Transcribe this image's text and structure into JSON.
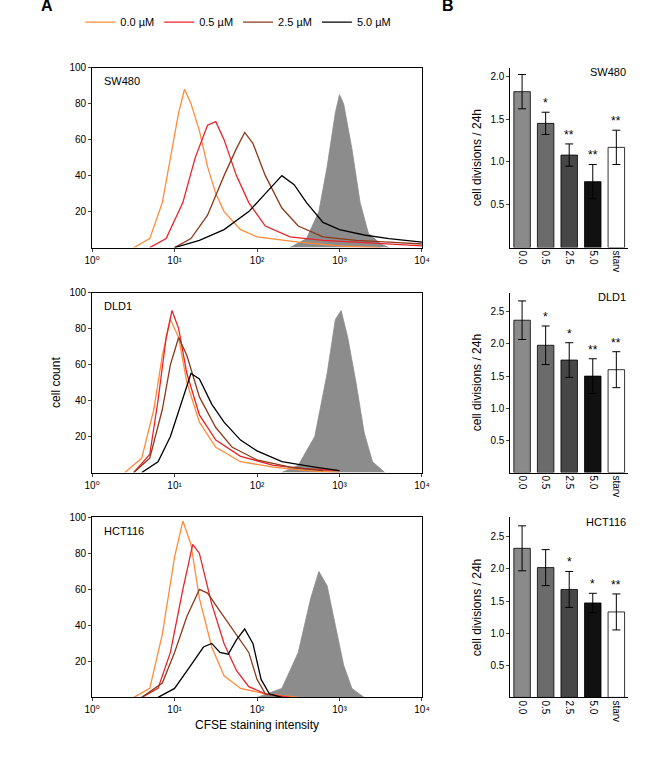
{
  "chart_data": [
    {
      "type": "line",
      "title": "SW480",
      "annotations": [
        "A"
      ],
      "legend": "top left",
      "log": "x",
      "xlim": [
        1,
        10000
      ],
      "xticks": [
        {
          "value": 1,
          "label": "10⁰"
        },
        {
          "value": 10,
          "label": "10¹"
        },
        {
          "value": 100,
          "label": "10²"
        },
        {
          "value": 1000,
          "label": "10³"
        },
        {
          "value": 10000,
          "label": "10⁴"
        }
      ],
      "ylim": [
        0,
        100
      ],
      "yticks": [
        20,
        40,
        60,
        80,
        100
      ],
      "series": [
        {
          "type": "area",
          "color": "#8c8c8c",
          "x": [
            251,
            398,
            562,
            708,
            891,
            1000,
            1122,
            1413,
            1778,
            2239,
            3162,
            3981
          ],
          "values": [
            0,
            5,
            20,
            45,
            75,
            85,
            80,
            55,
            25,
            8,
            2,
            0
          ]
        },
        {
          "name": "0.0 µM",
          "color": "#ff8c3a",
          "x": [
            3.2,
            5,
            7.1,
            8.9,
            11.2,
            13.2,
            15.8,
            20,
            25.1,
            31.6,
            39.8,
            63.1,
            100,
            316,
            1000,
            3162
          ],
          "values": [
            0,
            5,
            25,
            50,
            75,
            88,
            80,
            65,
            45,
            30,
            20,
            10,
            6,
            3,
            1,
            0
          ]
        },
        {
          "name": "0.5 µM",
          "color": "#e8232a",
          "x": [
            5,
            7.9,
            12.6,
            17.8,
            25.1,
            31.6,
            39.8,
            56.2,
            79.4,
            126,
            251,
            631,
            1585,
            3981,
            10000
          ],
          "values": [
            0,
            5,
            25,
            50,
            68,
            70,
            60,
            40,
            25,
            12,
            6,
            4,
            3,
            2,
            1
          ]
        },
        {
          "name": "2.5 µM",
          "color": "#8b3a1a",
          "x": [
            10,
            15.8,
            25.1,
            39.8,
            56.2,
            70.8,
            89.1,
            126,
            200,
            316,
            631,
            1585,
            3981,
            10000
          ],
          "values": [
            0,
            5,
            18,
            40,
            55,
            64,
            58,
            40,
            22,
            12,
            6,
            4,
            3,
            2
          ]
        },
        {
          "name": "5.0 µM",
          "color": "#000000",
          "x": [
            10,
            20,
            39.8,
            79.4,
            126,
            200,
            282,
            398,
            631,
            1000,
            1995,
            3981,
            10000
          ],
          "values": [
            0,
            4,
            10,
            20,
            30,
            40,
            35,
            25,
            14,
            10,
            7,
            5,
            3
          ]
        }
      ]
    },
    {
      "type": "line",
      "title": "DLD1",
      "ylabel": "cell count",
      "log": "x",
      "xlim": [
        1,
        10000
      ],
      "xticks": [
        {
          "value": 1,
          "label": "10⁰"
        },
        {
          "value": 10,
          "label": "10¹"
        },
        {
          "value": 100,
          "label": "10²"
        },
        {
          "value": 1000,
          "label": "10³"
        },
        {
          "value": 10000,
          "label": "10⁴"
        }
      ],
      "ylim": [
        0,
        100
      ],
      "yticks": [
        20,
        40,
        60,
        80,
        100
      ],
      "series": [
        {
          "type": "area",
          "color": "#8c8c8c",
          "x": [
            200,
            316,
            501,
            708,
            891,
            1047,
            1259,
            1585,
            1995,
            2512,
            3548
          ],
          "values": [
            0,
            4,
            20,
            55,
            85,
            90,
            75,
            50,
            22,
            6,
            0
          ]
        },
        {
          "color": "#ff8c3a",
          "x": [
            2.5,
            4,
            5.6,
            7.1,
            8.9,
            11.2,
            14.1,
            20,
            31.6,
            63.1,
            158,
            398,
            1000
          ],
          "values": [
            0,
            8,
            35,
            65,
            85,
            75,
            50,
            28,
            14,
            6,
            3,
            1,
            0
          ]
        },
        {
          "color": "#e8232a",
          "x": [
            3.2,
            5,
            6.3,
            7.9,
            9.3,
            11.2,
            14.1,
            20,
            31.6,
            63.1,
            158,
            398,
            1000
          ],
          "values": [
            0,
            10,
            40,
            75,
            90,
            80,
            55,
            32,
            18,
            9,
            4,
            2,
            1
          ]
        },
        {
          "color": "#8b3a1a",
          "x": [
            3.2,
            5,
            7.1,
            8.9,
            11.2,
            14.1,
            20,
            31.6,
            50.1,
            100,
            251,
            631
          ],
          "values": [
            0,
            8,
            35,
            60,
            75,
            65,
            42,
            25,
            14,
            7,
            3,
            1
          ]
        },
        {
          "color": "#000000",
          "x": [
            4,
            6.3,
            8.9,
            12.6,
            15.8,
            20,
            28.2,
            39.8,
            63.1,
            100,
            200,
            501,
            1000
          ],
          "values": [
            0,
            6,
            20,
            42,
            55,
            52,
            38,
            28,
            18,
            12,
            6,
            3,
            1
          ]
        }
      ]
    },
    {
      "type": "line",
      "title": "HCT116",
      "xlabel": "CFSE staining intensity",
      "log": "x",
      "xlim": [
        1,
        10000
      ],
      "xticks": [
        {
          "value": 1,
          "label": "10⁰"
        },
        {
          "value": 10,
          "label": "10¹"
        },
        {
          "value": 100,
          "label": "10²"
        },
        {
          "value": 1000,
          "label": "10³"
        },
        {
          "value": 10000,
          "label": "10⁴"
        }
      ],
      "ylim": [
        0,
        100
      ],
      "yticks": [
        20,
        40,
        60,
        80,
        100
      ],
      "series": [
        {
          "type": "area",
          "color": "#8c8c8c",
          "x": [
            100,
            200,
            316,
            447,
            562,
            708,
            891,
            1122,
            1413,
            1995
          ],
          "values": [
            0,
            5,
            25,
            55,
            70,
            62,
            40,
            18,
            5,
            0
          ]
        },
        {
          "color": "#ff8c3a",
          "x": [
            3.2,
            5,
            7.1,
            10,
            12.6,
            15.8,
            20,
            28.2,
            39.8,
            63.1,
            126,
            316
          ],
          "values": [
            0,
            5,
            35,
            78,
            98,
            85,
            55,
            28,
            12,
            5,
            2,
            0
          ]
        },
        {
          "color": "#e8232a",
          "x": [
            4,
            6.3,
            8.9,
            12.6,
            16.6,
            20,
            28.2,
            39.8,
            56.2,
            79.4,
            126,
            251
          ],
          "values": [
            0,
            5,
            25,
            60,
            85,
            80,
            52,
            30,
            15,
            6,
            2,
            0
          ]
        },
        {
          "color": "#8b3a1a",
          "x": [
            4,
            7.1,
            10,
            14.1,
            20,
            25.1,
            35.5,
            50.1,
            63.1,
            79.4,
            100,
            126,
            200
          ],
          "values": [
            0,
            8,
            25,
            45,
            60,
            58,
            48,
            38,
            32,
            25,
            10,
            2,
            0
          ]
        },
        {
          "color": "#000000",
          "x": [
            6.3,
            10,
            15.8,
            22.4,
            28.2,
            35.5,
            44.7,
            56.2,
            70.8,
            89.1,
            112,
            141,
            200
          ],
          "values": [
            0,
            5,
            18,
            28,
            30,
            25,
            24,
            32,
            38,
            30,
            10,
            2,
            0
          ]
        }
      ]
    },
    {
      "type": "bar",
      "title": "SW480",
      "annotations": [
        "B"
      ],
      "ylabel": "cell divisions / 24h",
      "categories": [
        "0.0",
        "0.5",
        "2.5",
        "5.0",
        "starv"
      ],
      "values": [
        1.82,
        1.45,
        1.08,
        0.77,
        1.17
      ],
      "errors": [
        0.2,
        0.13,
        0.13,
        0.2,
        0.2
      ],
      "significance": [
        null,
        "*",
        "**",
        "**",
        "**"
      ],
      "colors": [
        "#8a8a8a",
        "#6b6b6b",
        "#474747",
        "#111111",
        "#ffffff"
      ],
      "ylim": [
        0,
        2.1
      ],
      "yticks": [
        {
          "value": 0.5,
          "label": "0.5"
        },
        {
          "value": 1,
          "label": "1.0"
        },
        {
          "value": 1.5,
          "label": "1.5"
        },
        {
          "value": 2,
          "label": "2.0"
        }
      ]
    },
    {
      "type": "bar",
      "title": "DLD1",
      "ylabel": "cell divisions / 24h",
      "categories": [
        "0.0",
        "0.5",
        "2.5",
        "5.0",
        "starv"
      ],
      "values": [
        2.37,
        1.98,
        1.75,
        1.5,
        1.6
      ],
      "errors": [
        0.3,
        0.3,
        0.27,
        0.27,
        0.28
      ],
      "significance": [
        null,
        "*",
        "*",
        "**",
        "**"
      ],
      "colors": [
        "#8a8a8a",
        "#6b6b6b",
        "#474747",
        "#111111",
        "#ffffff"
      ],
      "ylim": [
        0,
        2.8
      ],
      "yticks": [
        {
          "value": 0.5,
          "label": "0.5"
        },
        {
          "value": 1,
          "label": "1.0"
        },
        {
          "value": 1.5,
          "label": "1.5"
        },
        {
          "value": 2,
          "label": "2.0"
        },
        {
          "value": 2.5,
          "label": "2.5"
        }
      ]
    },
    {
      "type": "bar",
      "title": "HCT116",
      "ylabel": "cell divisions / 24h",
      "categories": [
        "0.0",
        "0.5",
        "2.5",
        "5.0",
        "starv"
      ],
      "values": [
        2.32,
        2.02,
        1.68,
        1.47,
        1.33
      ],
      "errors": [
        0.35,
        0.28,
        0.28,
        0.15,
        0.28
      ],
      "significance": [
        null,
        null,
        "*",
        "*",
        "**"
      ],
      "colors": [
        "#8a8a8a",
        "#6b6b6b",
        "#474747",
        "#111111",
        "#ffffff"
      ],
      "ylim": [
        0,
        2.8
      ],
      "yticks": [
        {
          "value": 0.5,
          "label": "0.5"
        },
        {
          "value": 1,
          "label": "1.0"
        },
        {
          "value": 1.5,
          "label": "1.5"
        },
        {
          "value": 2,
          "label": "2.0"
        },
        {
          "value": 2.5,
          "label": "2.5"
        }
      ]
    }
  ]
}
